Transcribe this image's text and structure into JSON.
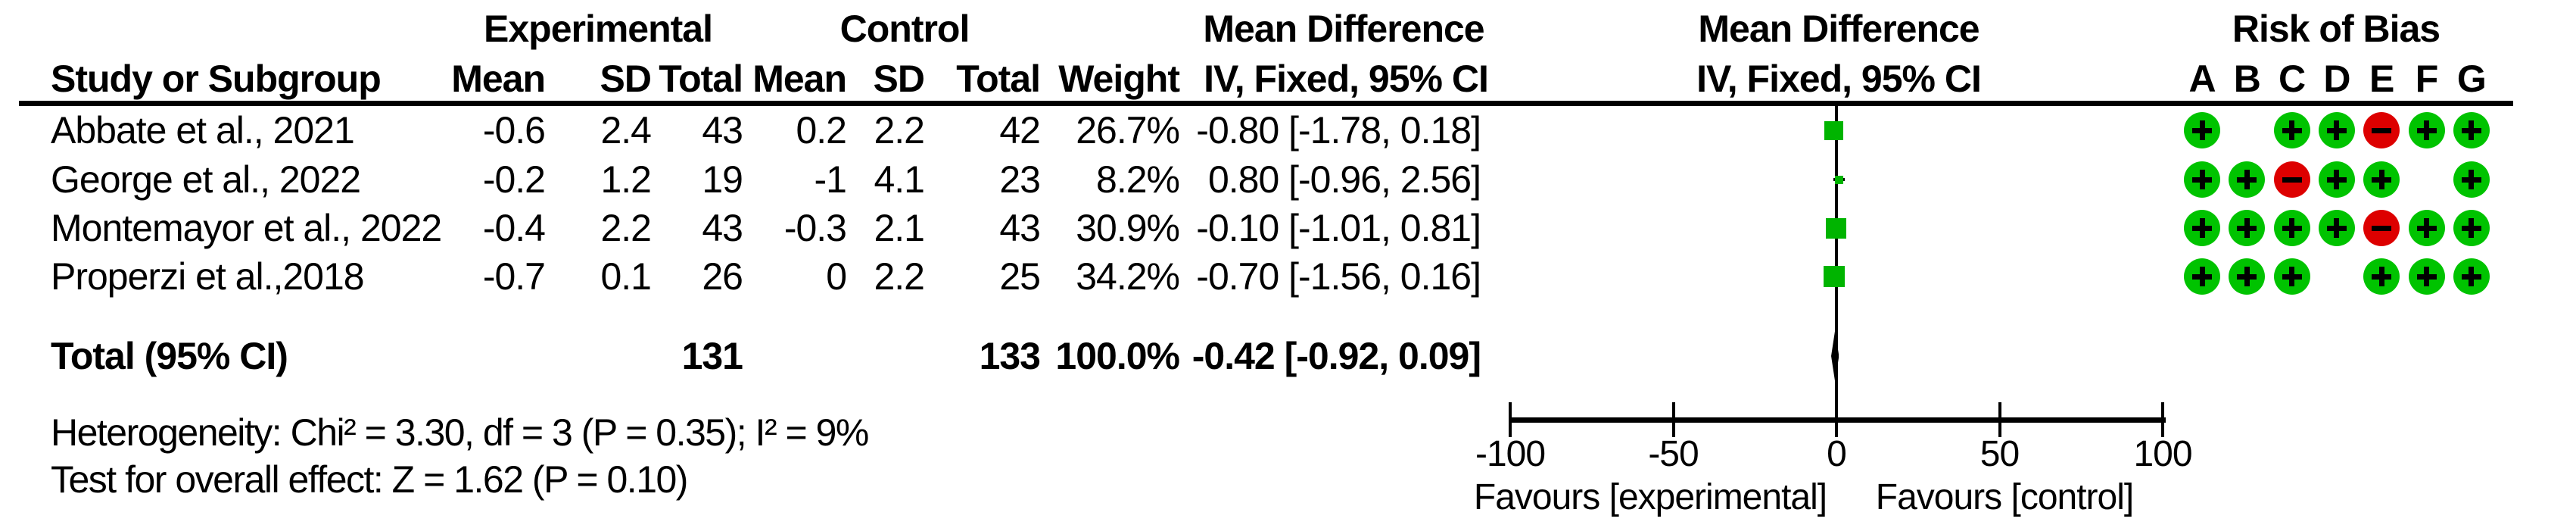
{
  "header": {
    "group_experimental": "Experimental",
    "group_control": "Control",
    "group_md_text": "Mean Difference",
    "group_md_plot": "Mean Difference",
    "group_rob": "Risk of Bias",
    "study": "Study or Subgroup",
    "exp_mean": "Mean",
    "exp_sd": "SD",
    "exp_total": "Total",
    "ctl_mean": "Mean",
    "ctl_sd": "SD",
    "ctl_total": "Total",
    "weight": "Weight",
    "ci": "IV, Fixed, 95% CI",
    "ci_plot": "IV, Fixed, 95% CI",
    "rob_letters": [
      "A",
      "B",
      "C",
      "D",
      "E",
      "F",
      "G"
    ]
  },
  "studies": [
    {
      "name": "Abbate et al., 2021",
      "exp_mean": "-0.6",
      "exp_sd": "2.4",
      "exp_total": "43",
      "ctl_mean": "0.2",
      "ctl_sd": "2.2",
      "ctl_total": "42",
      "weight": "26.7%",
      "ci": "-0.80 [-1.78, 0.18]",
      "effect": -0.8,
      "ci_low": -1.78,
      "ci_high": 0.18,
      "rob": [
        "+",
        "",
        "+",
        "+",
        "-",
        "+",
        "+"
      ]
    },
    {
      "name": "George et al., 2022",
      "exp_mean": "-0.2",
      "exp_sd": "1.2",
      "exp_total": "19",
      "ctl_mean": "-1",
      "ctl_sd": "4.1",
      "ctl_total": "23",
      "weight": "8.2%",
      "ci": "0.80 [-0.96, 2.56]",
      "effect": 0.8,
      "ci_low": -0.96,
      "ci_high": 2.56,
      "rob": [
        "+",
        "+",
        "-",
        "+",
        "+",
        "",
        "+"
      ]
    },
    {
      "name": "Montemayor et al., 2022",
      "exp_mean": "-0.4",
      "exp_sd": "2.2",
      "exp_total": "43",
      "ctl_mean": "-0.3",
      "ctl_sd": "2.1",
      "ctl_total": "43",
      "weight": "30.9%",
      "ci": "-0.10 [-1.01, 0.81]",
      "effect": -0.1,
      "ci_low": -1.01,
      "ci_high": 0.81,
      "rob": [
        "+",
        "+",
        "+",
        "+",
        "-",
        "+",
        "+"
      ]
    },
    {
      "name": "Properzi et al.,2018",
      "exp_mean": "-0.7",
      "exp_sd": "0.1",
      "exp_total": "26",
      "ctl_mean": "0",
      "ctl_sd": "2.2",
      "ctl_total": "25",
      "weight": "34.2%",
      "ci": "-0.70 [-1.56, 0.16]",
      "effect": -0.7,
      "ci_low": -1.56,
      "ci_high": 0.16,
      "rob": [
        "+",
        "+",
        "+",
        "",
        "+",
        "+",
        "+"
      ]
    }
  ],
  "total_row": {
    "label": "Total (95% CI)",
    "exp_total": "131",
    "ctl_total": "133",
    "weight": "100.0%",
    "ci": "-0.42 [-0.92, 0.09]",
    "effect": -0.42,
    "ci_low": -0.92,
    "ci_high": 0.09
  },
  "footnotes": {
    "heterogeneity": "Heterogeneity: Chi² = 3.30, df = 3 (P = 0.35); I² = 9%",
    "overall_effect": "Test for overall effect: Z = 1.62 (P = 0.10)"
  },
  "axis": {
    "ticks": [
      "-100",
      "-50",
      "0",
      "50",
      "100"
    ],
    "tick_values": [
      -100,
      -50,
      0,
      50,
      100
    ],
    "favours_left": "Favours [experimental]",
    "favours_right": "Favours [control]"
  },
  "colors": {
    "circle_green": "#00c300",
    "circle_red": "#dd0000",
    "square_green": "#00b400",
    "text": "#000000"
  },
  "chart_data": {
    "type": "scatter",
    "subtype": "forest-plot",
    "title": "Mean Difference IV, Fixed, 95% CI",
    "xlabel": "Mean Difference",
    "xlim": [
      -100,
      100
    ],
    "x_ticks": [
      -100,
      -50,
      0,
      50,
      100
    ],
    "favours_left": "Favours [experimental]",
    "favours_right": "Favours [control]",
    "model": "IV, Fixed, 95% CI",
    "series": [
      {
        "name": "Abbate et al., 2021",
        "effect": -0.8,
        "ci": [
          -1.78,
          0.18
        ],
        "weight_pct": 26.7
      },
      {
        "name": "George et al., 2022",
        "effect": 0.8,
        "ci": [
          -0.96,
          2.56
        ],
        "weight_pct": 8.2
      },
      {
        "name": "Montemayor et al., 2022",
        "effect": -0.1,
        "ci": [
          -1.01,
          0.81
        ],
        "weight_pct": 30.9
      },
      {
        "name": "Properzi et al.,2018",
        "effect": -0.7,
        "ci": [
          -1.56,
          0.16
        ],
        "weight_pct": 34.2
      }
    ],
    "total": {
      "label": "Total (95% CI)",
      "effect": -0.42,
      "ci": [
        -0.92,
        0.09
      ],
      "weight_pct": 100.0,
      "n_experimental": 131,
      "n_control": 133
    },
    "heterogeneity": {
      "chi2": 3.3,
      "df": 3,
      "p": 0.35,
      "i2_pct": 9
    },
    "overall_effect": {
      "z": 1.62,
      "p": 0.1
    }
  }
}
